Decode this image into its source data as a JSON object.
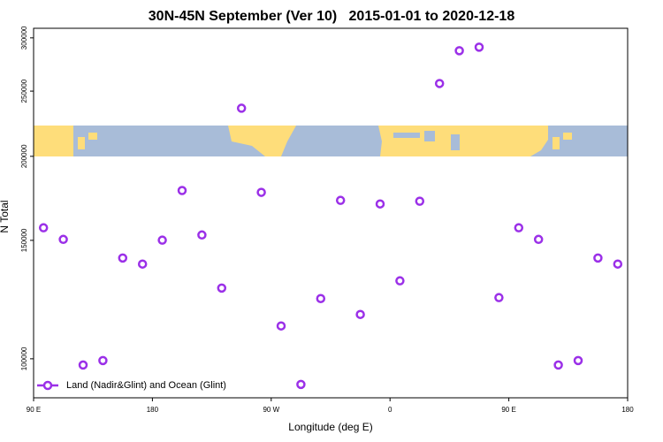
{
  "chart_data": {
    "type": "scatter",
    "title": "30N-45N September (Ver 10)   2015-01-01 to 2020-12-18",
    "xlabel": "Longitude (deg E)",
    "ylabel": "N Total",
    "xlim": [
      90,
      540
    ],
    "ylim": [
      87500,
      310000
    ],
    "log_y": true,
    "xticks": [
      {
        "value": 90,
        "label": "90 E"
      },
      180,
      {
        "value": 270,
        "label": "90 W"
      },
      {
        "value": 360,
        "label": "0"
      },
      {
        "value": 450,
        "label": "90 E"
      },
      {
        "value": 540,
        "label": "180"
      }
    ],
    "yticks": [
      100000,
      150000,
      200000,
      250000,
      300000
    ],
    "legend": "lower left",
    "series": [
      {
        "name": "Land (Nadir&Glint) and Ocean (Glint)",
        "color": "#9b30e8",
        "x": [
          97.5,
          112.5,
          127.5,
          142.5,
          157.5,
          172.5,
          187.5,
          202.5,
          217.5,
          232.5,
          247.5,
          262.5,
          277.5,
          292.5,
          307.5,
          322.5,
          337.5,
          352.5,
          367.5,
          382.5,
          397.5,
          412.5,
          427.5,
          442.5,
          457.5,
          472.5,
          487.5,
          502.5,
          517.5,
          532.5
        ],
        "values": [
          156600,
          150500,
          97900,
          99400,
          141200,
          138300,
          150100,
          177900,
          152800,
          127400,
          235800,
          176800,
          111900,
          91600,
          122900,
          172000,
          116400,
          169900,
          130600,
          171500,
          256600,
          287100,
          290600,
          123300,
          156600,
          150500,
          97900,
          99400,
          141200,
          138300
        ]
      }
    ]
  }
}
